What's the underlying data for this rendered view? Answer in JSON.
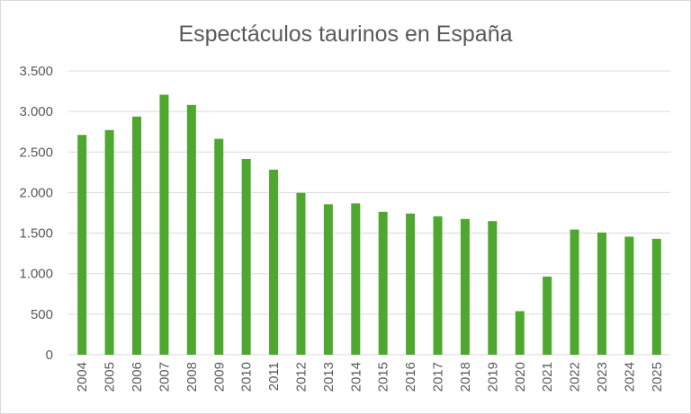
{
  "chart_data": {
    "type": "bar",
    "title": "Espectáculos taurinos en España",
    "xlabel": "",
    "ylabel": "",
    "categories": [
      "2004",
      "2005",
      "2006",
      "2007",
      "2008",
      "2009",
      "2010",
      "2011",
      "2012",
      "2013",
      "2014",
      "2015",
      "2016",
      "2017",
      "2018",
      "2019",
      "2020",
      "2021",
      "2022",
      "2023",
      "2024",
      "2025"
    ],
    "values": [
      2711,
      2771,
      2937,
      3207,
      3081,
      2663,
      2415,
      2282,
      1996,
      1856,
      1867,
      1763,
      1741,
      1707,
      1674,
      1648,
      537,
      963,
      1544,
      1507,
      1456,
      1430
    ],
    "ylim": [
      0,
      3500
    ],
    "yticks": [
      0,
      500,
      1000,
      1500,
      2000,
      2500,
      3000,
      3500
    ],
    "ytick_labels": [
      "0",
      "500",
      "1.000",
      "1.500",
      "2.000",
      "2.500",
      "3.000",
      "3.500"
    ],
    "grid": true,
    "legend": "none",
    "bar_color": "#4EA72E",
    "grid_color": "#d9d9d9"
  }
}
